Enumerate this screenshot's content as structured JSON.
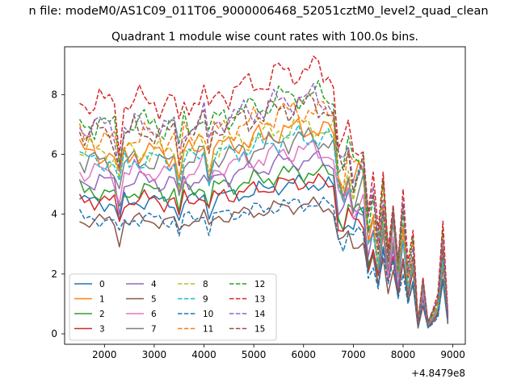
{
  "chart_data": {
    "type": "line",
    "suptitle": "n file: modeM0/AS1C09_011T06_9000006468_52051cztM0_level2_quad_clean",
    "title": "Quadrant 1 module wise count rates with 100.0s bins.",
    "xlabel": "",
    "ylabel": "",
    "offset_text": "+4.8479e8",
    "xlim": [
      1200,
      9250
    ],
    "ylim": [
      -0.35,
      9.6
    ],
    "xticks": [
      2000,
      3000,
      4000,
      5000,
      6000,
      7000,
      8000,
      9000
    ],
    "yticks": [
      0,
      2,
      4,
      6,
      8
    ],
    "grid": false,
    "legend_position": "lower-left",
    "legend_columns": 4,
    "series": [
      {
        "name": "0",
        "color": "#1f77b4",
        "dash": "solid",
        "level": 4.5,
        "phase": 0.0
      },
      {
        "name": "1",
        "color": "#ff7f0e",
        "dash": "solid",
        "level": 6.15,
        "phase": 0.7
      },
      {
        "name": "2",
        "color": "#2ca02c",
        "dash": "solid",
        "level": 4.85,
        "phase": 1.4
      },
      {
        "name": "3",
        "color": "#d62728",
        "dash": "solid",
        "level": 4.55,
        "phase": 2.1
      },
      {
        "name": "4",
        "color": "#9467bd",
        "dash": "solid",
        "level": 5.2,
        "phase": 2.8
      },
      {
        "name": "5",
        "color": "#8c564b",
        "dash": "solid",
        "level": 3.85,
        "phase": 3.5
      },
      {
        "name": "6",
        "color": "#e377c2",
        "dash": "solid",
        "level": 5.5,
        "phase": 4.2
      },
      {
        "name": "7",
        "color": "#7f7f7f",
        "dash": "solid",
        "level": 5.85,
        "phase": 4.9
      },
      {
        "name": "8",
        "color": "#bcbd22",
        "dash": "dashed",
        "level": 6.2,
        "phase": 5.6
      },
      {
        "name": "9",
        "color": "#17becf",
        "dash": "dashed",
        "level": 5.9,
        "phase": 0.35
      },
      {
        "name": "10",
        "color": "#1f77b4",
        "dash": "dashed",
        "level": 3.9,
        "phase": 1.05
      },
      {
        "name": "11",
        "color": "#ff7f0e",
        "dash": "dashed",
        "level": 6.7,
        "phase": 1.75
      },
      {
        "name": "12",
        "color": "#2ca02c",
        "dash": "dashed",
        "level": 7.15,
        "phase": 2.45
      },
      {
        "name": "13",
        "color": "#d62728",
        "dash": "dashed",
        "level": 7.9,
        "phase": 3.15
      },
      {
        "name": "14",
        "color": "#9467bd",
        "dash": "dashed",
        "level": 7.05,
        "phase": 3.85
      },
      {
        "name": "15",
        "color": "#8c564b",
        "dash": "dashed",
        "level": 6.85,
        "phase": 4.55
      }
    ],
    "x": [
      1500,
      1600,
      1700,
      1800,
      1900,
      2000,
      2100,
      2200,
      2300,
      2400,
      2500,
      2600,
      2700,
      2800,
      2900,
      3000,
      3100,
      3200,
      3300,
      3400,
      3500,
      3600,
      3700,
      3800,
      3900,
      4000,
      4100,
      4200,
      4300,
      4400,
      4500,
      4600,
      4700,
      4800,
      4900,
      5000,
      5100,
      5200,
      5300,
      5400,
      5500,
      5600,
      5700,
      5800,
      5900,
      6000,
      6100,
      6200,
      6300,
      6400,
      6500,
      6600,
      6700,
      6800,
      6900,
      7000,
      7100,
      7200,
      7300,
      7400,
      7500,
      7600,
      7700,
      7800,
      7900,
      8000,
      8100,
      8200,
      8300,
      8400,
      8500,
      8600,
      8700,
      8800,
      8900
    ],
    "trend": [
      1.0,
      0.97,
      0.99,
      0.98,
      0.99,
      0.98,
      0.97,
      0.96,
      0.82,
      0.98,
      0.97,
      0.99,
      0.98,
      0.99,
      0.98,
      0.99,
      0.98,
      0.97,
      0.98,
      0.99,
      0.85,
      0.99,
      0.98,
      0.99,
      1.01,
      1.03,
      0.9,
      1.0,
      1.01,
      1.03,
      1.02,
      1.03,
      1.04,
      1.05,
      1.04,
      1.06,
      1.07,
      1.06,
      1.08,
      1.09,
      1.1,
      1.11,
      1.1,
      1.11,
      1.12,
      1.11,
      1.12,
      1.12,
      1.11,
      1.1,
      1.1,
      1.09,
      0.82,
      0.78,
      0.88,
      0.86,
      0.93,
      0.95,
      0.58,
      0.7,
      0.44,
      0.74,
      0.43,
      0.68,
      0.36,
      0.64,
      0.3,
      0.46,
      0.06,
      0.3,
      0.06,
      0.11,
      0.17,
      0.49,
      0.1
    ]
  }
}
